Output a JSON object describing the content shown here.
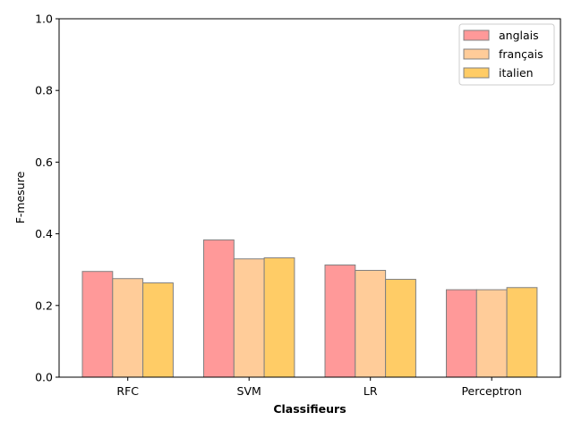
{
  "chart_data": {
    "type": "bar",
    "categories": [
      "RFC",
      "SVM",
      "LR",
      "Perceptron"
    ],
    "series": [
      {
        "name": "anglais",
        "values": [
          0.295,
          0.383,
          0.313,
          0.244
        ],
        "color": "#ff9999"
      },
      {
        "name": "français",
        "values": [
          0.275,
          0.33,
          0.298,
          0.244
        ],
        "color": "#ffcc99"
      },
      {
        "name": "italien",
        "values": [
          0.263,
          0.333,
          0.273,
          0.25
        ],
        "color": "#ffcc66"
      }
    ],
    "xlabel": "Classifieurs",
    "ylabel": "F-mesure",
    "ylim": [
      0,
      1.0
    ],
    "yticks": [
      0.0,
      0.2,
      0.4,
      0.6,
      0.8,
      1.0
    ],
    "ytick_labels": [
      "0.0",
      "0.2",
      "0.4",
      "0.6",
      "0.8",
      "1.0"
    ],
    "grid": false,
    "legend_position": "top-right",
    "bar_edge_color": "#808080"
  }
}
